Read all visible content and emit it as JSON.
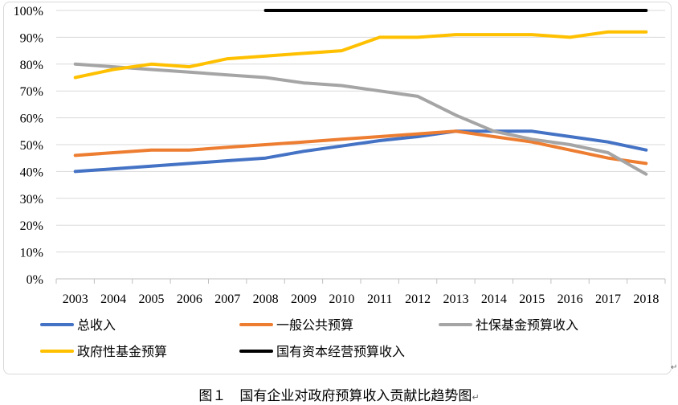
{
  "caption": "图１　国有企业对政府预算收入贡献比趋势图",
  "caption_mark": "↵",
  "para_mark": "↵",
  "chart_data": {
    "type": "line",
    "title": "",
    "xlabel": "",
    "ylabel": "",
    "x": [
      "2003",
      "2004",
      "2005",
      "2006",
      "2007",
      "2008",
      "2009",
      "2010",
      "2011",
      "2012",
      "2013",
      "2014",
      "2015",
      "2016",
      "2017",
      "2018"
    ],
    "y_ticks": [
      "0%",
      "10%",
      "20%",
      "30%",
      "40%",
      "50%",
      "60%",
      "70%",
      "80%",
      "90%",
      "100%"
    ],
    "ylim": [
      0,
      100
    ],
    "grid": true,
    "legend_position": "bottom",
    "series": [
      {
        "name": "总收入",
        "color": "#4472c4",
        "values": [
          40,
          41,
          42,
          43,
          44,
          45,
          47.5,
          49.5,
          51.5,
          53,
          55,
          55,
          55,
          53,
          51,
          48
        ]
      },
      {
        "name": "一般公共预算",
        "color": "#ed7d31",
        "values": [
          46,
          47,
          48,
          48,
          49,
          50,
          51,
          52,
          53,
          54,
          55,
          53,
          51,
          48,
          45,
          43
        ]
      },
      {
        "name": "社保基金预算收入",
        "color": "#a5a5a5",
        "values": [
          80,
          79,
          78,
          77,
          76,
          75,
          73,
          72,
          70,
          68,
          61,
          55,
          52,
          50,
          47,
          39
        ]
      },
      {
        "name": "政府性基金预算",
        "color": "#ffc000",
        "values": [
          75,
          78,
          80,
          79,
          82,
          83,
          84,
          85,
          90,
          90,
          91,
          91,
          91,
          90,
          92,
          92
        ]
      },
      {
        "name": "国有资本经营预算收入",
        "color": "#000000",
        "values": [
          null,
          null,
          null,
          null,
          null,
          100,
          100,
          100,
          100,
          100,
          100,
          100,
          100,
          100,
          100,
          100
        ]
      }
    ]
  }
}
